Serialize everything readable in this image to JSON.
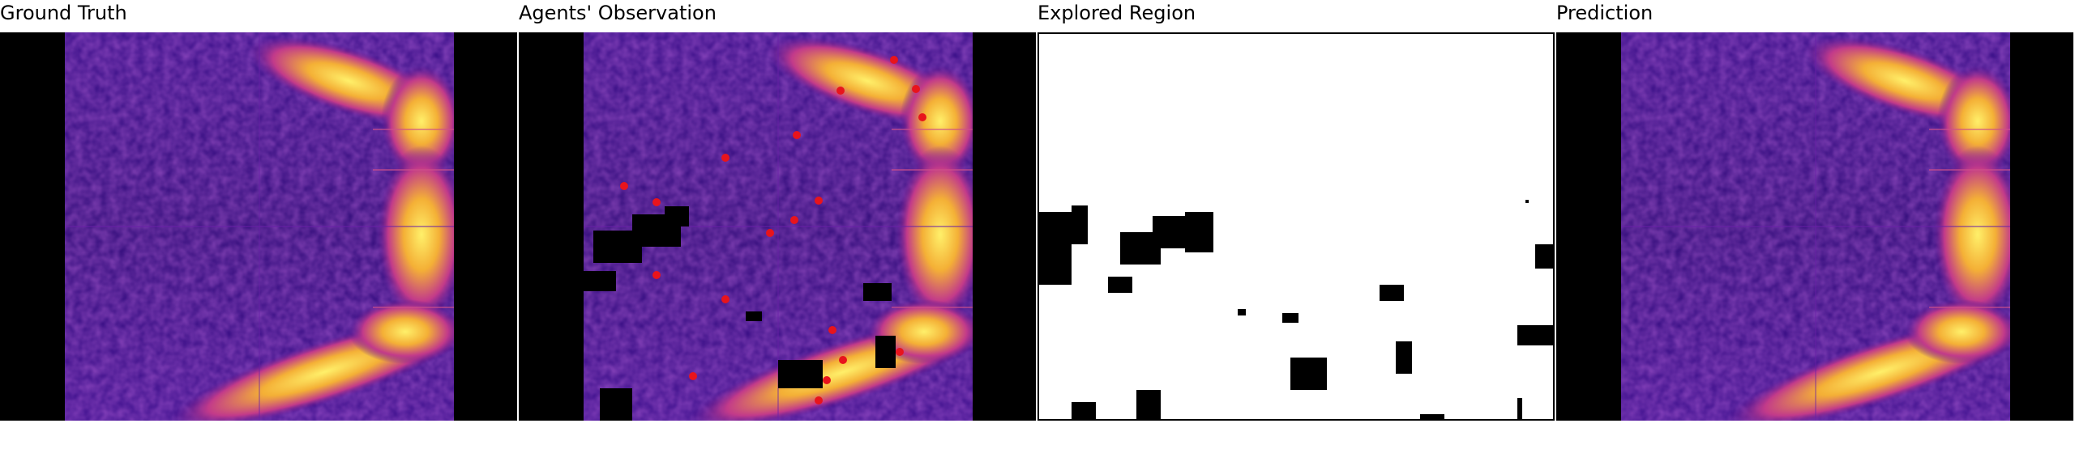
{
  "panels": [
    {
      "title": "Ground Truth"
    },
    {
      "title": "Agents' Observation"
    },
    {
      "title": "Explored Region"
    },
    {
      "title": "Prediction"
    }
  ],
  "colors": {
    "background": "#000000",
    "heat_low": "#2a0a6b",
    "heat_mid": "#8a1cb0",
    "heat_high": "#f4b036",
    "heat_peak": "#fff06a",
    "agent_marker": "#e8141c",
    "explored": "#ffffff",
    "unexplored": "#000000"
  },
  "agent_marker_icon": "red-agent-dot-icon"
}
